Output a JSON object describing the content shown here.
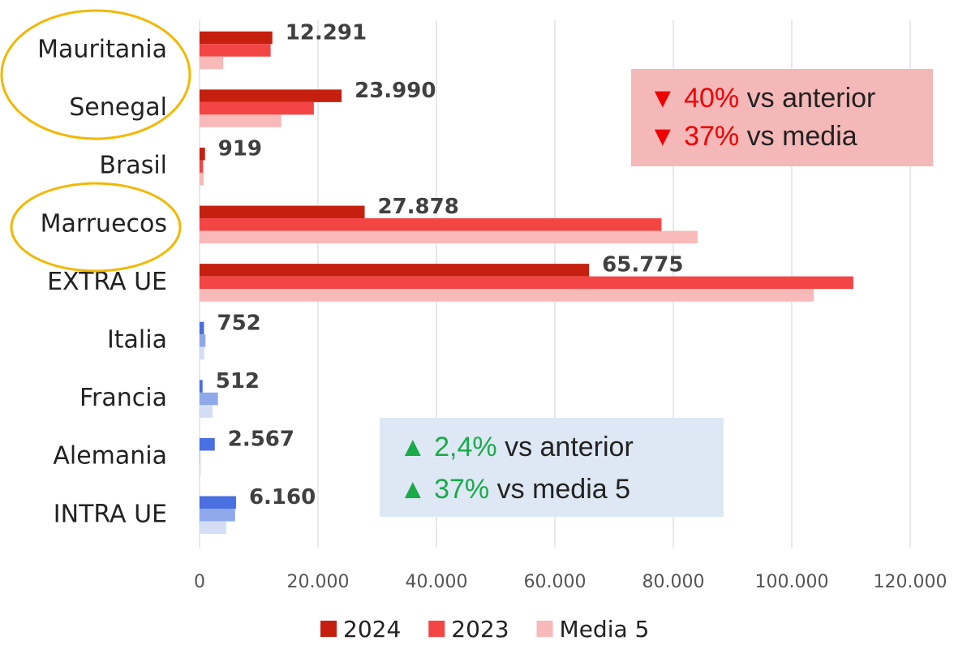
{
  "chart_data": {
    "type": "barh",
    "categories": [
      "Mauritania",
      "Senegal",
      "Brasil",
      "Marruecos",
      "EXTRA UE",
      "Italia",
      "Francia",
      "Alemania",
      "INTRA UE"
    ],
    "series": [
      {
        "name": "2024",
        "color": "#c5200f",
        "colors": [
          "#c5200f",
          "#c5200f",
          "#c5200f",
          "#c5200f",
          "#c5200f",
          "#4a6fe0",
          "#4a6fe0",
          "#4a6fe0",
          "#4a6fe0"
        ],
        "values": [
          12291,
          23990,
          919,
          27878,
          65775,
          752,
          512,
          2567,
          6160
        ],
        "value_labels": [
          "12.291",
          "23.990",
          "919",
          "27.878",
          "65.775",
          "752",
          "512",
          "2.567",
          "6.160"
        ]
      },
      {
        "name": "2023",
        "color": "#f44545",
        "colors": [
          "#f44545",
          "#f44545",
          "#f44545",
          "#f44545",
          "#f44545",
          "#8ea8ea",
          "#8ea8ea",
          "#8ea8ea",
          "#8ea8ea"
        ],
        "values": [
          12000,
          19300,
          600,
          78000,
          110400,
          1000,
          3100,
          100,
          6000
        ]
      },
      {
        "name": "Media 5",
        "color": "#f8b9b9",
        "colors": [
          "#f8b9b9",
          "#f8b9b9",
          "#f8b9b9",
          "#f8b9b9",
          "#f8b9b9",
          "#d3def5",
          "#d3def5",
          "#d3def5",
          "#d3def5"
        ],
        "values": [
          4000,
          13800,
          700,
          84100,
          103700,
          800,
          2200,
          200,
          4500
        ]
      }
    ],
    "xlim": [
      0,
      120000
    ],
    "xticks": [
      0,
      {
        "value": 20000,
        "label": "20.000"
      },
      {
        "value": 40000,
        "label": "40.000"
      },
      {
        "value": 60000,
        "label": "60.000"
      },
      {
        "value": 80000,
        "label": "80.000"
      },
      {
        "value": 100000,
        "label": "100.000"
      },
      {
        "value": 120000,
        "label": "120.000"
      }
    ],
    "grid": true,
    "legend": "bottom",
    "annotations": [
      {
        "lines": [
          {
            "marker": "▼",
            "value": "40%",
            "text": "vs anterior"
          },
          {
            "marker": "▼",
            "value": "37%",
            "text": "vs media"
          }
        ]
      },
      {
        "lines": [
          {
            "marker": "▲",
            "value": "2,4%",
            "text": "vs anterior"
          },
          {
            "marker": "▲",
            "value": "37%",
            "text": "vs media 5"
          }
        ]
      }
    ]
  }
}
